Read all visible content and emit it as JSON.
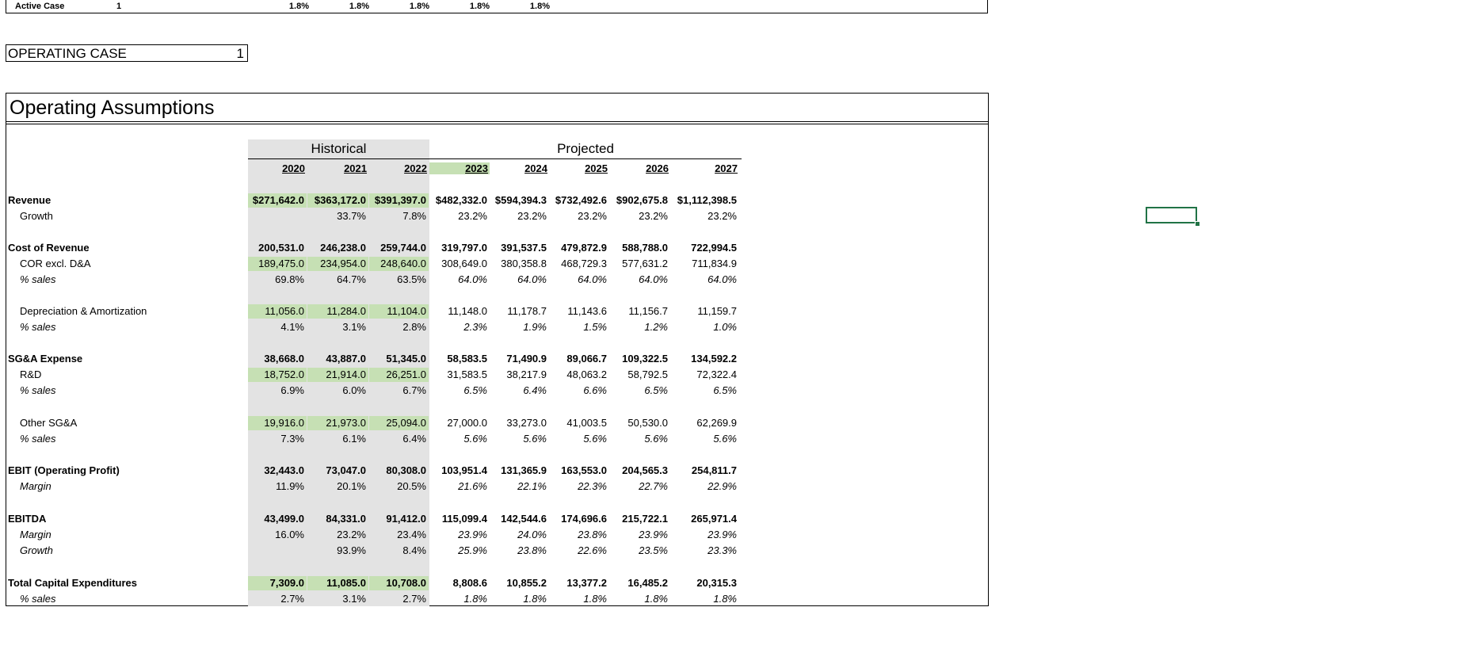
{
  "active_case": {
    "label": "Active Case",
    "number": "1",
    "values": [
      "1.8%",
      "1.8%",
      "1.8%",
      "1.8%",
      "1.8%"
    ]
  },
  "operating_case": {
    "label": "OPERATING CASE",
    "value": "1"
  },
  "section": {
    "title": "Operating Assumptions",
    "historical_label": "Historical",
    "projected_label": "Projected",
    "years": [
      "2020",
      "2021",
      "2022",
      "2023",
      "2024",
      "2025",
      "2026",
      "2027"
    ]
  },
  "rows": [
    {
      "label": "Revenue",
      "style": "bold",
      "values": [
        "$271,642.0",
        "$363,172.0",
        "$391,397.0",
        "$482,332.0",
        "$594,394.3",
        "$732,492.6",
        "$902,675.8",
        "$1,112,398.5"
      ]
    },
    {
      "label": "Growth",
      "style": "indent",
      "values": [
        "",
        "33.7%",
        "7.8%",
        "23.2%",
        "23.2%",
        "23.2%",
        "23.2%",
        "23.2%"
      ]
    },
    {
      "label": "Cost of Revenue",
      "style": "bold",
      "values": [
        "200,531.0",
        "246,238.0",
        "259,744.0",
        "319,797.0",
        "391,537.5",
        "479,872.9",
        "588,788.0",
        "722,994.5"
      ]
    },
    {
      "label": "COR excl. D&A",
      "style": "indent",
      "values": [
        "189,475.0",
        "234,954.0",
        "248,640.0",
        "308,649.0",
        "380,358.8",
        "468,729.3",
        "577,631.2",
        "711,834.9"
      ]
    },
    {
      "label": "% sales",
      "style": "indent-italic",
      "values": [
        "69.8%",
        "64.7%",
        "63.5%",
        "64.0%",
        "64.0%",
        "64.0%",
        "64.0%",
        "64.0%"
      ]
    },
    {
      "label": "Depreciation & Amortization",
      "style": "indent",
      "values": [
        "11,056.0",
        "11,284.0",
        "11,104.0",
        "11,148.0",
        "11,178.7",
        "11,143.6",
        "11,156.7",
        "11,159.7"
      ]
    },
    {
      "label": "% sales",
      "style": "indent-italic",
      "values": [
        "4.1%",
        "3.1%",
        "2.8%",
        "2.3%",
        "1.9%",
        "1.5%",
        "1.2%",
        "1.0%"
      ]
    },
    {
      "label": "SG&A Expense",
      "style": "bold",
      "values": [
        "38,668.0",
        "43,887.0",
        "51,345.0",
        "58,583.5",
        "71,490.9",
        "89,066.7",
        "109,322.5",
        "134,592.2"
      ]
    },
    {
      "label": "R&D",
      "style": "indent",
      "values": [
        "18,752.0",
        "21,914.0",
        "26,251.0",
        "31,583.5",
        "38,217.9",
        "48,063.2",
        "58,792.5",
        "72,322.4"
      ]
    },
    {
      "label": "% sales",
      "style": "indent-italic",
      "values": [
        "6.9%",
        "6.0%",
        "6.7%",
        "6.5%",
        "6.4%",
        "6.6%",
        "6.5%",
        "6.5%"
      ]
    },
    {
      "label": "Other SG&A",
      "style": "indent",
      "values": [
        "19,916.0",
        "21,973.0",
        "25,094.0",
        "27,000.0",
        "33,273.0",
        "41,003.5",
        "50,530.0",
        "62,269.9"
      ]
    },
    {
      "label": "% sales",
      "style": "indent-italic",
      "values": [
        "7.3%",
        "6.1%",
        "6.4%",
        "5.6%",
        "5.6%",
        "5.6%",
        "5.6%",
        "5.6%"
      ]
    },
    {
      "label": "EBIT (Operating Profit)",
      "style": "bold",
      "values": [
        "32,443.0",
        "73,047.0",
        "80,308.0",
        "103,951.4",
        "131,365.9",
        "163,553.0",
        "204,565.3",
        "254,811.7"
      ]
    },
    {
      "label": "Margin",
      "style": "indent-italic",
      "values": [
        "11.9%",
        "20.1%",
        "20.5%",
        "21.6%",
        "22.1%",
        "22.3%",
        "22.7%",
        "22.9%"
      ]
    },
    {
      "label": "EBITDA",
      "style": "bold",
      "values": [
        "43,499.0",
        "84,331.0",
        "91,412.0",
        "115,099.4",
        "142,544.6",
        "174,696.6",
        "215,722.1",
        "265,971.4"
      ]
    },
    {
      "label": "Margin",
      "style": "indent-italic",
      "values": [
        "16.0%",
        "23.2%",
        "23.4%",
        "23.9%",
        "24.0%",
        "23.8%",
        "23.9%",
        "23.9%"
      ]
    },
    {
      "label": "Growth",
      "style": "indent-italic",
      "values": [
        "",
        "93.9%",
        "8.4%",
        "25.9%",
        "23.8%",
        "22.6%",
        "23.5%",
        "23.3%"
      ]
    },
    {
      "label": "Total Capital Expenditures",
      "style": "bold",
      "values": [
        "7,309.0",
        "11,085.0",
        "10,708.0",
        "8,808.6",
        "10,855.2",
        "13,377.2",
        "16,485.2",
        "20,315.3"
      ]
    },
    {
      "label": "% sales",
      "style": "indent-italic",
      "values": [
        "2.7%",
        "3.1%",
        "2.7%",
        "1.8%",
        "1.8%",
        "1.8%",
        "1.8%",
        "1.8%"
      ]
    }
  ],
  "colors": {
    "input_green": "#c6e0b4",
    "historical_gray": "#e3e3e3",
    "selection_green": "#217346"
  }
}
